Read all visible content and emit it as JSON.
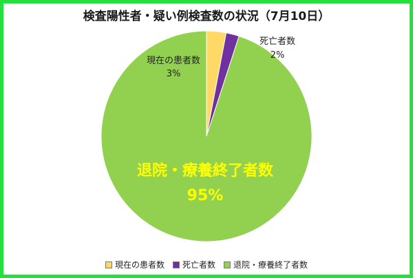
{
  "chart_data": {
    "type": "pie",
    "title": "検査陽性者・疑い例検査数の状況（7月10日）",
    "slices": [
      {
        "name": "現在の患者数",
        "value": 3,
        "label": "3%",
        "color": "#ffd966"
      },
      {
        "name": "死亡者数",
        "value": 2,
        "label": "2%",
        "color": "#7030a0"
      },
      {
        "name": "退院・療養終了者数",
        "value": 95,
        "label": "95%",
        "color": "#92d050"
      }
    ],
    "legend_position": "bottom",
    "border_color": "#21e13a",
    "highlight_label_color": "#ffff00"
  }
}
